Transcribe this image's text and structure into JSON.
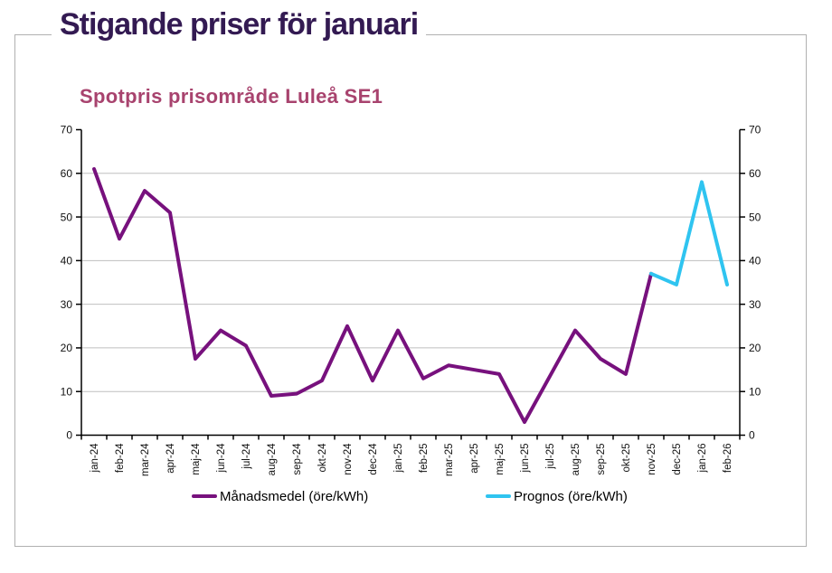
{
  "page": {
    "title": "Stigande priser för januari"
  },
  "chart_data": {
    "type": "line",
    "title": "Spotpris prisområde Luleå SE1",
    "categories": [
      "jan-24",
      "feb-24",
      "mar-24",
      "apr-24",
      "maj-24",
      "jun-24",
      "jul-24",
      "aug-24",
      "sep-24",
      "okt-24",
      "nov-24",
      "dec-24",
      "jan-25",
      "feb-25",
      "mar-25",
      "apr-25",
      "maj-25",
      "jun-25",
      "jul-25",
      "aug-25",
      "sep-25",
      "okt-25",
      "nov-25",
      "dec-25",
      "jan-26",
      "feb-26"
    ],
    "series": [
      {
        "name": "Månadsmedel (öre/kWh)",
        "color": "#77117d",
        "values": [
          61,
          45,
          56,
          51,
          17.5,
          24,
          20.5,
          9,
          9.5,
          12.5,
          25,
          12.5,
          24,
          13,
          16,
          15,
          14,
          3,
          13.5,
          24,
          17.5,
          14,
          37,
          null,
          null,
          null
        ]
      },
      {
        "name": "Prognos (öre/kWh)",
        "color": "#2fc4f0",
        "values": [
          null,
          null,
          null,
          null,
          null,
          null,
          null,
          null,
          null,
          null,
          null,
          null,
          null,
          null,
          null,
          null,
          null,
          null,
          null,
          null,
          null,
          null,
          37,
          34.5,
          58,
          34.5
        ]
      }
    ],
    "ylim": [
      0,
      70
    ],
    "ytick_step": 10,
    "xlabel": "",
    "ylabel": "",
    "grid": "horizontal",
    "y_axis_sides": "both",
    "legend_position": "bottom"
  },
  "colors": {
    "page_title": "#331a52",
    "chart_title": "#a8436e",
    "grid": "#bfbfbf",
    "axis": "#000000",
    "frame_border": "#b0b0b0"
  }
}
